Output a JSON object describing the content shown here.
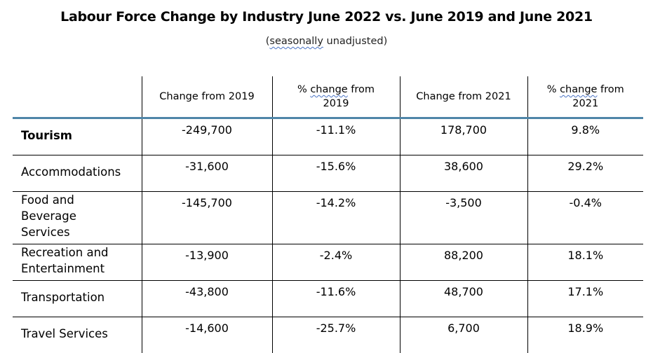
{
  "title": "Labour Force Change by Industry June 2022 vs. June 2019 and June 2021",
  "subtitle": {
    "open": "(",
    "flagged": "seasonally",
    "rest": " unadjusted)"
  },
  "table": {
    "headers": [
      {
        "plain": ""
      },
      {
        "plain": "Change from 2019"
      },
      {
        "pre": "% ",
        "flagged": "change",
        "post": " from",
        "line2": "2019"
      },
      {
        "plain": "Change from 2021"
      },
      {
        "pre": "% ",
        "flagged": "change",
        "post": " from",
        "line2": "2021"
      }
    ],
    "rows": [
      {
        "category": "Tourism",
        "values": [
          "-249,700",
          "-11.1%",
          "178,700",
          "9.8%"
        ]
      },
      {
        "category": "Accommodations",
        "values": [
          "-31,600",
          "-15.6%",
          "38,600",
          "29.2%"
        ]
      },
      {
        "category": "Food and Beverage Services",
        "category_lines": [
          "Food and",
          "Beverage",
          "Services"
        ],
        "values": [
          "-145,700",
          "-14.2%",
          "-3,500",
          "-0.4%"
        ]
      },
      {
        "category": "Recreation and Entertainment",
        "category_lines": [
          "Recreation and",
          "Entertainment"
        ],
        "values": [
          "-13,900",
          "-2.4%",
          "88,200",
          "18.1%"
        ]
      },
      {
        "category": "Transportation",
        "values": [
          "-43,800",
          "-11.6%",
          "48,700",
          "17.1%"
        ]
      },
      {
        "category": "Travel Services",
        "values": [
          "-14,600",
          "-25.7%",
          "6,700",
          "18.9%"
        ]
      }
    ]
  },
  "colors": {
    "header_rule": "#4f86a8",
    "spellcheck_underline": "#4a73c4",
    "grid": "#000000"
  }
}
